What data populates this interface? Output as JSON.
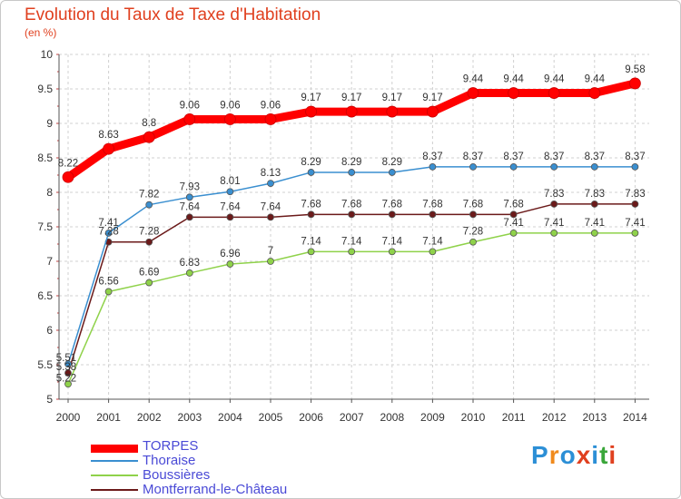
{
  "header": {
    "title": "Evolution du Taux de Taxe d'Habitation",
    "subtitle": "(en %)"
  },
  "logo": {
    "text": "Proxiti",
    "colors": [
      "#2c8fd6",
      "#f08a1c",
      "#2c8fd6",
      "#e0401f",
      "#2c8fd6",
      "#3aa63a",
      "#e0401f"
    ]
  },
  "chart_data": {
    "type": "line",
    "x": [
      "2000",
      "2001",
      "2002",
      "2003",
      "2004",
      "2005",
      "2006",
      "2007",
      "2008",
      "2009",
      "2010",
      "2011",
      "2012",
      "2013",
      "2014"
    ],
    "ylim": [
      5,
      10
    ],
    "yticks": [
      "5",
      "5.5",
      "6",
      "6.5",
      "7",
      "7.5",
      "8",
      "8.5",
      "9",
      "9.5",
      "10"
    ],
    "grid": true,
    "legend": "bottom-left",
    "series": [
      {
        "name": "TORPES",
        "color": "#ff0000",
        "values": [
          8.22,
          8.63,
          8.8,
          9.06,
          9.06,
          9.06,
          9.17,
          9.17,
          9.17,
          9.17,
          9.44,
          9.44,
          9.44,
          9.44,
          9.58
        ],
        "labels": [
          "8.22",
          "8.63",
          "8.8",
          "9.06",
          "9.06",
          "9.06",
          "9.17",
          "9.17",
          "9.17",
          "9.17",
          "9.44",
          "9.44",
          "9.44",
          "9.44",
          "9.58"
        ]
      },
      {
        "name": "Thoraise",
        "color": "#3a8fd0",
        "values": [
          5.51,
          7.41,
          7.82,
          7.93,
          8.01,
          8.13,
          8.29,
          8.29,
          8.29,
          8.37,
          8.37,
          8.37,
          8.37,
          8.37,
          8.37
        ],
        "labels": [
          "5.51",
          "7.41",
          "7.82",
          "7.93",
          "8.01",
          "8.13",
          "8.29",
          "8.29",
          "8.29",
          "8.37",
          "8.37",
          "8.37",
          "8.37",
          "8.37",
          "8.37"
        ]
      },
      {
        "name": "Boussières",
        "color": "#8fd24a",
        "values": [
          5.22,
          6.56,
          6.69,
          6.83,
          6.96,
          7,
          7.14,
          7.14,
          7.14,
          7.14,
          7.28,
          7.41,
          7.41,
          7.41,
          7.41
        ],
        "labels": [
          "5.22",
          "6.56",
          "6.69",
          "6.83",
          "6.96",
          "7",
          "7.14",
          "7.14",
          "7.14",
          "7.14",
          "7.28",
          "7.41",
          "7.41",
          "7.41",
          "7.41"
        ]
      },
      {
        "name": "Montferrand-le-Château",
        "color": "#6b1a1a",
        "values": [
          5.38,
          7.28,
          7.28,
          7.64,
          7.64,
          7.64,
          7.68,
          7.68,
          7.68,
          7.68,
          7.68,
          7.68,
          7.83,
          7.83,
          7.83
        ],
        "labels": [
          "5.38",
          "7.28",
          "7.28",
          "7.64",
          "7.64",
          "7.64",
          "7.68",
          "7.68",
          "7.68",
          "7.68",
          "7.68",
          "7.68",
          "7.83",
          "7.83",
          "7.83"
        ]
      }
    ]
  }
}
